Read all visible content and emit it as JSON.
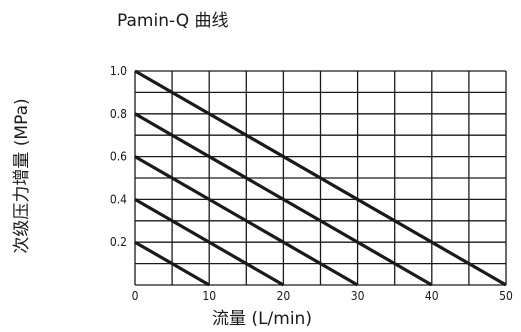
{
  "chart_data": {
    "type": "line",
    "title": "Pamin-Q 曲线",
    "xlabel": "流量 (L/min)",
    "ylabel": "次级压力增量 (MPa)",
    "xlim": [
      0,
      50
    ],
    "ylim": [
      0,
      1.0
    ],
    "x_ticks": [
      "0",
      "10",
      "20",
      "30",
      "40",
      "50"
    ],
    "y_ticks": [
      "0.2",
      "0.4",
      "0.6",
      "0.8",
      "1.0"
    ],
    "grid": true,
    "x_grid_step": 5,
    "y_grid_step": 0.1,
    "series": [
      {
        "points": [
          [
            0,
            1.0
          ],
          [
            50,
            0.0
          ]
        ]
      },
      {
        "points": [
          [
            0,
            0.8
          ],
          [
            40,
            0.0
          ]
        ]
      },
      {
        "points": [
          [
            0,
            0.6
          ],
          [
            30,
            0.0
          ]
        ]
      },
      {
        "points": [
          [
            0,
            0.4
          ],
          [
            20,
            0.0
          ]
        ]
      },
      {
        "points": [
          [
            0,
            0.2
          ],
          [
            10,
            0.0
          ]
        ]
      }
    ]
  }
}
